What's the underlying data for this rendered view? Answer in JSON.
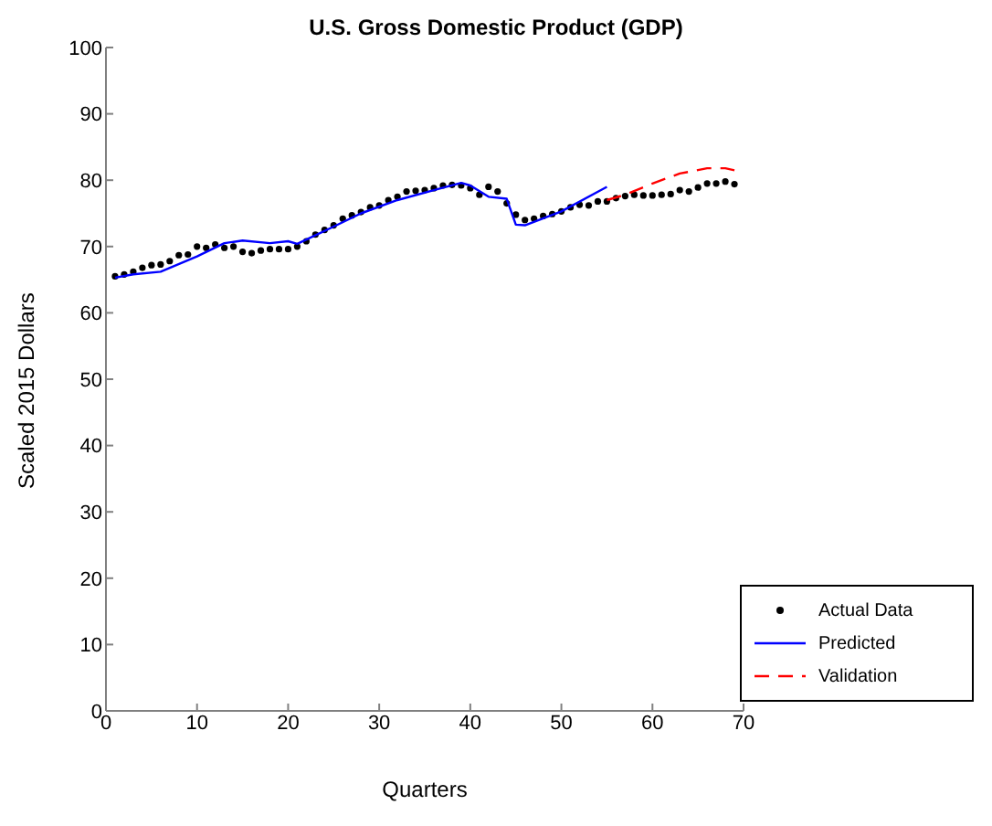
{
  "chart_data": {
    "type": "scatter",
    "title": "U.S. Gross Domestic Product (GDP)",
    "xlabel": "Quarters",
    "ylabel": "Scaled 2015 Dollars",
    "xlim": [
      0,
      70
    ],
    "xticks": [
      0,
      10,
      20,
      30,
      40,
      50,
      60,
      70
    ],
    "ylim": [
      0,
      100
    ],
    "yticks": [
      0,
      10,
      20,
      30,
      40,
      50,
      60,
      70,
      80,
      90,
      100
    ],
    "grid": false,
    "legend": "bottom right",
    "series": [
      {
        "name": "Actual Data",
        "marker": "circle",
        "color": "#000000",
        "x": [
          1,
          2,
          3,
          4,
          5,
          6,
          7,
          8,
          9,
          10,
          11,
          12,
          13,
          14,
          15,
          16,
          17,
          18,
          19,
          20,
          21,
          22,
          23,
          24,
          25,
          26,
          27,
          28,
          29,
          30,
          31,
          32,
          33,
          34,
          35,
          36,
          37,
          38,
          39,
          40,
          41,
          42,
          43,
          44,
          45,
          46,
          47,
          48,
          49,
          50,
          51,
          52,
          53,
          54,
          55,
          56,
          57,
          58,
          59,
          60,
          61,
          62,
          63,
          64,
          65,
          66,
          67,
          68,
          69
        ],
        "values": [
          65.5,
          65.8,
          66.2,
          66.8,
          67.2,
          67.3,
          67.8,
          68.7,
          68.8,
          70,
          69.8,
          70.3,
          69.8,
          70,
          69.2,
          69,
          69.4,
          69.6,
          69.6,
          69.6,
          70,
          70.8,
          71.8,
          72.5,
          73.2,
          74.2,
          74.7,
          75.2,
          75.9,
          76.2,
          77,
          77.5,
          78.3,
          78.4,
          78.5,
          78.8,
          79.2,
          79.3,
          79.2,
          78.8,
          77.8,
          79,
          78.3,
          76.5,
          74.8,
          74,
          74.2,
          74.6,
          74.9,
          75.3,
          75.9,
          76.3,
          76.2,
          76.8,
          76.8,
          77.3,
          77.6,
          77.8,
          77.7,
          77.7,
          77.8,
          77.9,
          78.5,
          78.3,
          78.9,
          79.5,
          79.5,
          79.8,
          79.4
        ]
      },
      {
        "name": "Predicted",
        "type": "line",
        "line_style": "solid",
        "color": "#0000ff",
        "x": [
          1,
          3,
          6,
          10,
          13,
          15,
          18,
          20,
          21,
          25,
          28,
          32,
          36,
          39,
          40,
          42,
          44,
          45,
          46,
          50,
          55
        ],
        "values": [
          65.3,
          65.8,
          66.2,
          68.5,
          70.5,
          70.9,
          70.5,
          70.8,
          70.4,
          73,
          75,
          77,
          78.5,
          79.6,
          79.2,
          77.5,
          77.2,
          73.3,
          73.2,
          75.3,
          79
        ]
      },
      {
        "name": "Validation",
        "type": "line",
        "line_style": "dashed",
        "color": "#ff0000",
        "x": [
          55,
          57,
          60,
          63,
          66,
          68,
          69
        ],
        "values": [
          77,
          77.8,
          79.5,
          81,
          81.8,
          81.8,
          81.5
        ]
      }
    ]
  }
}
